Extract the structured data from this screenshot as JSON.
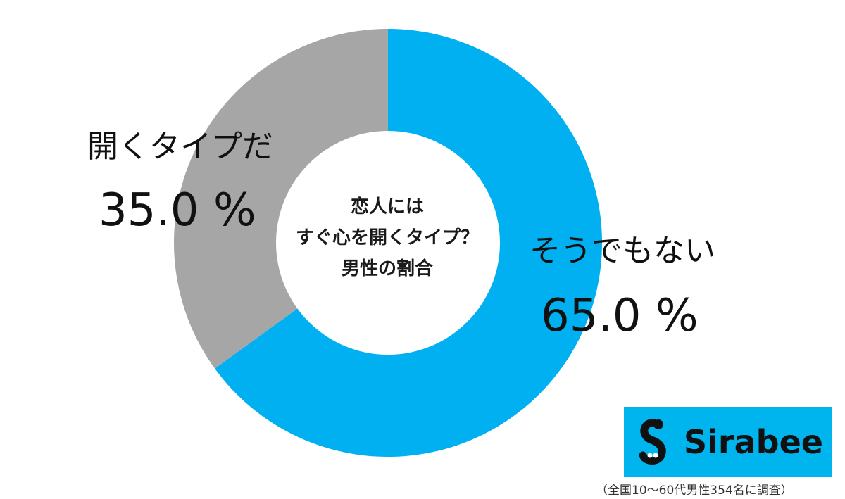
{
  "chart_data": {
    "type": "pie",
    "donut": true,
    "center_text": [
      "恋人には",
      "すぐ心を開くタイプ？",
      "男性の割合"
    ],
    "slices": [
      {
        "label": "そうでもない",
        "value": 65.0,
        "value_text": "65.0 %",
        "color": "#00b0f0"
      },
      {
        "label": "開くタイプだ",
        "value": 35.0,
        "value_text": "35.0 %",
        "color": "#a6a6a6"
      }
    ]
  },
  "logo": {
    "text": "Sirabee",
    "background": "#00b4ee"
  },
  "footnote": "（全国10～60代男性354名に調査）"
}
